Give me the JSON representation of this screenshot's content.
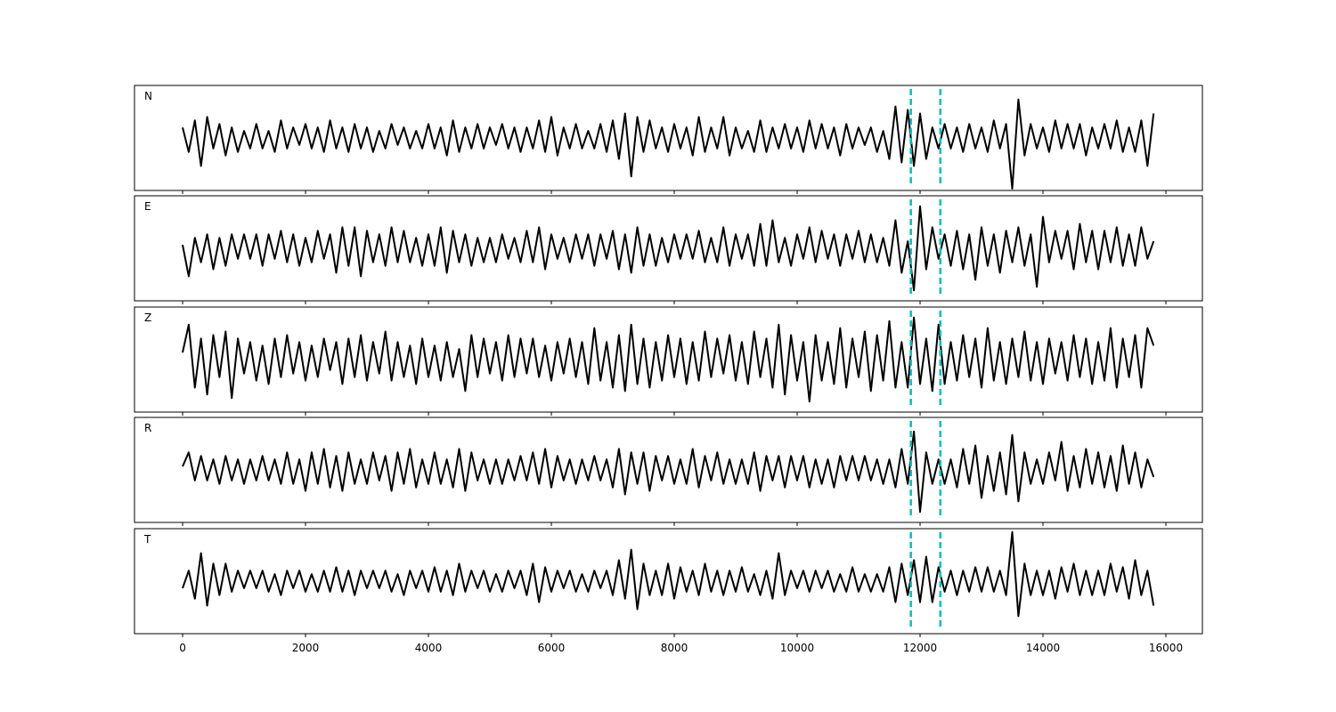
{
  "chart_data": {
    "type": "line",
    "x": [
      0,
      100,
      200,
      300,
      400,
      500,
      600,
      700,
      800,
      900,
      1000,
      1100,
      1200,
      1300,
      1400,
      1500,
      1600,
      1700,
      1800,
      1900,
      2000,
      2100,
      2200,
      2300,
      2400,
      2500,
      2600,
      2700,
      2800,
      2900,
      3000,
      3100,
      3200,
      3300,
      3400,
      3500,
      3600,
      3700,
      3800,
      3900,
      4000,
      4100,
      4200,
      4300,
      4400,
      4500,
      4600,
      4700,
      4800,
      4900,
      5000,
      5100,
      5200,
      5300,
      5400,
      5500,
      5600,
      5700,
      5800,
      5900,
      6000,
      6100,
      6200,
      6300,
      6400,
      6500,
      6600,
      6700,
      6800,
      6900,
      7000,
      7100,
      7200,
      7300,
      7400,
      7500,
      7600,
      7700,
      7800,
      7900,
      8000,
      8100,
      8200,
      8300,
      8400,
      8500,
      8600,
      8700,
      8800,
      8900,
      9000,
      9100,
      9200,
      9300,
      9400,
      9500,
      9600,
      9700,
      9800,
      9900,
      10000,
      10100,
      10200,
      10300,
      10400,
      10500,
      10600,
      10700,
      10800,
      10900,
      11000,
      11100,
      11200,
      11300,
      11400,
      11500,
      11600,
      11700,
      11800,
      11900,
      12000,
      12100,
      12200,
      12300,
      12400,
      12500,
      12600,
      12700,
      12800,
      12900,
      13000,
      13100,
      13200,
      13300,
      13400,
      13500,
      13600,
      13700,
      13800,
      13900,
      14000,
      14100,
      14200,
      14300,
      14400,
      14500,
      14600,
      14700,
      14800,
      14900,
      15000,
      15100,
      15200,
      15300,
      15400,
      15500,
      15600,
      15700,
      15800
    ],
    "series": [
      {
        "name": "N",
        "color": "#000000",
        "values": [
          0.3,
          -0.4,
          0.5,
          -0.8,
          0.6,
          -0.3,
          0.4,
          -0.5,
          0.3,
          -0.4,
          0.2,
          -0.3,
          0.4,
          -0.3,
          0.2,
          -0.4,
          0.5,
          -0.3,
          0.3,
          -0.2,
          0.4,
          -0.3,
          0.3,
          -0.4,
          0.5,
          -0.3,
          0.3,
          -0.4,
          0.4,
          -0.3,
          0.3,
          -0.4,
          0.2,
          -0.3,
          0.4,
          -0.2,
          0.3,
          -0.3,
          0.2,
          -0.3,
          0.4,
          -0.3,
          0.3,
          -0.5,
          0.5,
          -0.4,
          0.3,
          -0.3,
          0.4,
          -0.3,
          0.3,
          -0.2,
          0.4,
          -0.3,
          0.3,
          -0.4,
          0.3,
          -0.3,
          0.5,
          -0.4,
          0.6,
          -0.5,
          0.3,
          -0.3,
          0.4,
          -0.3,
          0.2,
          -0.3,
          0.4,
          -0.4,
          0.5,
          -0.6,
          0.7,
          -1.1,
          0.6,
          -0.4,
          0.5,
          -0.3,
          0.3,
          -0.4,
          0.4,
          -0.3,
          0.3,
          -0.5,
          0.6,
          -0.4,
          0.3,
          -0.3,
          0.6,
          -0.5,
          0.3,
          -0.3,
          0.2,
          -0.4,
          0.5,
          -0.4,
          0.3,
          -0.3,
          0.4,
          -0.3,
          0.3,
          -0.4,
          0.5,
          -0.3,
          0.4,
          -0.3,
          0.3,
          -0.5,
          0.4,
          -0.3,
          0.3,
          -0.2,
          0.3,
          -0.4,
          0.2,
          -0.6,
          0.9,
          -0.7,
          0.8,
          -0.8,
          0.7,
          -0.6,
          0.3,
          -0.3,
          0.4,
          -0.3,
          0.3,
          -0.4,
          0.4,
          -0.3,
          0.3,
          -0.4,
          0.5,
          -0.3,
          0.4,
          -1.45,
          1.1,
          -0.5,
          0.4,
          -0.3,
          0.3,
          -0.4,
          0.5,
          -0.3,
          0.4,
          -0.3,
          0.4,
          -0.5,
          0.3,
          -0.3,
          0.4,
          -0.3,
          0.5,
          -0.4,
          0.3,
          -0.4,
          0.5,
          -0.8,
          0.7
        ]
      },
      {
        "name": "E",
        "color": "#000000",
        "values": [
          0.1,
          -0.8,
          0.3,
          -0.4,
          0.4,
          -0.6,
          0.3,
          -0.5,
          0.4,
          -0.3,
          0.4,
          -0.3,
          0.4,
          -0.5,
          0.4,
          -0.3,
          0.5,
          -0.4,
          0.4,
          -0.5,
          0.3,
          -0.4,
          0.5,
          -0.3,
          0.4,
          -0.7,
          0.6,
          -0.5,
          0.6,
          -0.8,
          0.5,
          -0.4,
          0.4,
          -0.5,
          0.6,
          -0.4,
          0.5,
          -0.4,
          0.3,
          -0.5,
          0.4,
          -0.5,
          0.6,
          -0.7,
          0.5,
          -0.4,
          0.4,
          -0.5,
          0.3,
          -0.4,
          0.3,
          -0.4,
          0.4,
          -0.3,
          0.3,
          -0.4,
          0.5,
          -0.4,
          0.6,
          -0.6,
          0.4,
          -0.3,
          0.3,
          -0.4,
          0.4,
          -0.3,
          0.4,
          -0.5,
          0.4,
          -0.3,
          0.5,
          -0.6,
          0.4,
          -0.7,
          0.6,
          -0.5,
          0.4,
          -0.5,
          0.3,
          -0.4,
          0.4,
          -0.3,
          0.4,
          -0.3,
          0.5,
          -0.4,
          0.3,
          -0.4,
          0.6,
          -0.5,
          0.4,
          -0.3,
          0.4,
          -0.5,
          0.7,
          -0.5,
          0.8,
          -0.4,
          0.3,
          -0.5,
          0.4,
          -0.3,
          0.6,
          -0.4,
          0.5,
          -0.3,
          0.4,
          -0.5,
          0.4,
          -0.3,
          0.5,
          -0.4,
          0.4,
          -0.4,
          0.3,
          -0.5,
          0.8,
          -0.7,
          0.2,
          -1.2,
          1.2,
          -0.6,
          0.6,
          -0.3,
          0.4,
          -0.5,
          0.5,
          -0.6,
          0.4,
          -0.9,
          0.6,
          -0.5,
          0.4,
          -0.7,
          0.5,
          -0.4,
          0.6,
          -0.5,
          0.4,
          -1.1,
          0.9,
          -0.4,
          0.5,
          -0.3,
          0.5,
          -0.6,
          0.7,
          -0.4,
          0.5,
          -0.6,
          0.5,
          -0.4,
          0.6,
          -0.5,
          0.4,
          -0.5,
          0.6,
          -0.3,
          0.2
        ]
      },
      {
        "name": "Z",
        "color": "#000000",
        "values": [
          0.2,
          1.0,
          -0.8,
          0.6,
          -1.0,
          0.7,
          -0.5,
          0.8,
          -1.1,
          0.6,
          -0.4,
          0.5,
          -0.6,
          0.4,
          -0.7,
          0.6,
          -0.5,
          0.7,
          -0.4,
          0.5,
          -0.6,
          0.4,
          -0.5,
          0.6,
          -0.3,
          0.5,
          -0.7,
          0.6,
          -0.5,
          0.7,
          -0.6,
          0.5,
          -0.4,
          0.8,
          -0.6,
          0.5,
          -0.5,
          0.4,
          -0.7,
          0.6,
          -0.5,
          0.4,
          -0.6,
          0.5,
          -0.5,
          0.3,
          -0.9,
          0.7,
          -0.5,
          0.6,
          -0.4,
          0.5,
          -0.6,
          0.7,
          -0.5,
          0.6,
          -0.4,
          0.6,
          -0.5,
          0.4,
          -0.6,
          0.5,
          -0.4,
          0.6,
          -0.5,
          0.5,
          -0.7,
          0.9,
          -0.6,
          0.5,
          -0.8,
          0.7,
          -0.9,
          1.0,
          -0.7,
          0.6,
          -0.8,
          0.5,
          -0.6,
          0.7,
          -0.5,
          0.6,
          -0.7,
          0.5,
          -0.6,
          0.8,
          -0.5,
          0.6,
          -0.4,
          0.7,
          -0.6,
          0.5,
          -0.7,
          0.8,
          -0.5,
          0.6,
          -0.8,
          1.0,
          -1.0,
          0.7,
          -0.6,
          0.5,
          -1.2,
          0.7,
          -0.6,
          0.5,
          -0.7,
          0.9,
          -0.8,
          0.6,
          -0.5,
          0.8,
          -0.9,
          0.7,
          -0.6,
          1.1,
          -0.8,
          0.5,
          -0.8,
          1.2,
          -0.7,
          0.6,
          -0.9,
          1.0,
          -0.7,
          0.5,
          -0.6,
          0.7,
          -0.5,
          0.6,
          -0.8,
          0.9,
          -0.6,
          0.5,
          -0.7,
          0.6,
          -0.5,
          0.8,
          -0.6,
          0.5,
          -0.7,
          0.6,
          -0.4,
          0.5,
          -0.6,
          0.7,
          -0.5,
          0.6,
          -0.7,
          0.5,
          -0.6,
          0.9,
          -0.8,
          0.6,
          -0.5,
          0.7,
          -0.8,
          0.9,
          0.4
        ]
      },
      {
        "name": "R",
        "color": "#000000",
        "values": [
          0.1,
          0.5,
          -0.3,
          0.4,
          -0.3,
          0.3,
          -0.4,
          0.4,
          -0.3,
          0.3,
          -0.4,
          0.3,
          -0.3,
          0.4,
          -0.3,
          0.3,
          -0.4,
          0.5,
          -0.4,
          0.3,
          -0.6,
          0.5,
          -0.4,
          0.6,
          -0.5,
          0.4,
          -0.6,
          0.5,
          -0.4,
          0.3,
          -0.4,
          0.5,
          -0.3,
          0.4,
          -0.6,
          0.5,
          -0.4,
          0.6,
          -0.5,
          0.3,
          -0.4,
          0.5,
          -0.4,
          0.3,
          -0.5,
          0.6,
          -0.6,
          0.5,
          -0.3,
          0.3,
          -0.4,
          0.3,
          -0.4,
          0.3,
          -0.3,
          0.4,
          -0.3,
          0.5,
          -0.4,
          0.6,
          -0.5,
          0.4,
          -0.3,
          0.3,
          -0.4,
          0.3,
          -0.3,
          0.4,
          -0.3,
          0.3,
          -0.5,
          0.6,
          -0.7,
          0.5,
          -0.4,
          0.5,
          -0.6,
          0.4,
          -0.3,
          0.4,
          -0.4,
          0.3,
          -0.4,
          0.6,
          -0.5,
          0.4,
          -0.3,
          0.5,
          -0.4,
          0.3,
          -0.4,
          0.3,
          -0.4,
          0.5,
          -0.6,
          0.4,
          -0.3,
          0.4,
          -0.5,
          0.4,
          -0.3,
          0.4,
          -0.5,
          0.3,
          -0.4,
          0.3,
          -0.5,
          0.4,
          -0.3,
          0.4,
          -0.3,
          0.4,
          -0.3,
          0.3,
          -0.4,
          0.3,
          -0.5,
          0.6,
          -0.4,
          1.1,
          -1.2,
          0.5,
          -0.4,
          0.3,
          -0.4,
          0.3,
          -0.5,
          0.6,
          -0.4,
          0.7,
          -0.8,
          0.4,
          -0.6,
          0.5,
          -0.7,
          1.0,
          -0.9,
          0.5,
          -0.4,
          0.3,
          -0.4,
          0.5,
          -0.3,
          0.8,
          -0.6,
          0.4,
          -0.5,
          0.6,
          -0.4,
          0.5,
          -0.5,
          0.4,
          -0.6,
          0.7,
          -0.4,
          0.5,
          -0.5,
          0.3,
          -0.2
        ]
      },
      {
        "name": "T",
        "color": "#000000",
        "values": [
          -0.2,
          0.3,
          -0.5,
          0.8,
          -0.7,
          0.5,
          -0.4,
          0.5,
          -0.3,
          0.3,
          -0.2,
          0.3,
          -0.2,
          0.3,
          -0.3,
          0.2,
          -0.4,
          0.3,
          -0.2,
          0.3,
          -0.3,
          0.2,
          -0.3,
          0.3,
          -0.3,
          0.4,
          -0.3,
          0.3,
          -0.4,
          0.3,
          -0.2,
          0.3,
          -0.2,
          0.3,
          -0.3,
          0.2,
          -0.4,
          0.3,
          -0.2,
          0.3,
          -0.3,
          0.4,
          -0.3,
          0.3,
          -0.4,
          0.5,
          -0.3,
          0.3,
          -0.2,
          0.3,
          -0.3,
          0.2,
          -0.3,
          0.3,
          -0.2,
          0.3,
          -0.4,
          0.5,
          -0.6,
          0.4,
          -0.3,
          0.3,
          -0.2,
          0.3,
          -0.3,
          0.2,
          -0.3,
          0.3,
          -0.2,
          0.3,
          -0.4,
          0.6,
          -0.5,
          0.9,
          -0.8,
          0.5,
          -0.4,
          0.3,
          -0.4,
          0.5,
          -0.5,
          0.4,
          -0.3,
          0.3,
          -0.4,
          0.5,
          -0.3,
          0.3,
          -0.4,
          0.3,
          -0.3,
          0.4,
          -0.3,
          0.2,
          -0.4,
          0.3,
          -0.5,
          0.8,
          -0.4,
          0.3,
          -0.2,
          0.3,
          -0.3,
          0.3,
          -0.2,
          0.3,
          -0.3,
          0.2,
          -0.3,
          0.4,
          -0.3,
          0.2,
          -0.3,
          0.2,
          -0.3,
          0.4,
          -0.6,
          0.5,
          -0.4,
          0.6,
          -0.6,
          0.7,
          -0.6,
          0.4,
          -0.3,
          0.3,
          -0.4,
          0.3,
          -0.3,
          0.4,
          -0.3,
          0.4,
          -0.3,
          0.3,
          -0.4,
          1.4,
          -1.0,
          0.5,
          -0.4,
          0.3,
          -0.4,
          0.3,
          -0.5,
          0.4,
          -0.3,
          0.5,
          -0.4,
          0.3,
          -0.4,
          0.3,
          -0.4,
          0.5,
          -0.3,
          0.4,
          -0.5,
          0.6,
          -0.4,
          0.3,
          -0.7
        ]
      }
    ],
    "xlim": [
      -783,
      16594
    ],
    "xticks": [
      0,
      2000,
      4000,
      6000,
      8000,
      10000,
      12000,
      14000,
      16000
    ],
    "ylim": [
      -1.5,
      1.5
    ],
    "vlines": [
      11850,
      12330
    ],
    "vline_color": "#00bfbf"
  }
}
